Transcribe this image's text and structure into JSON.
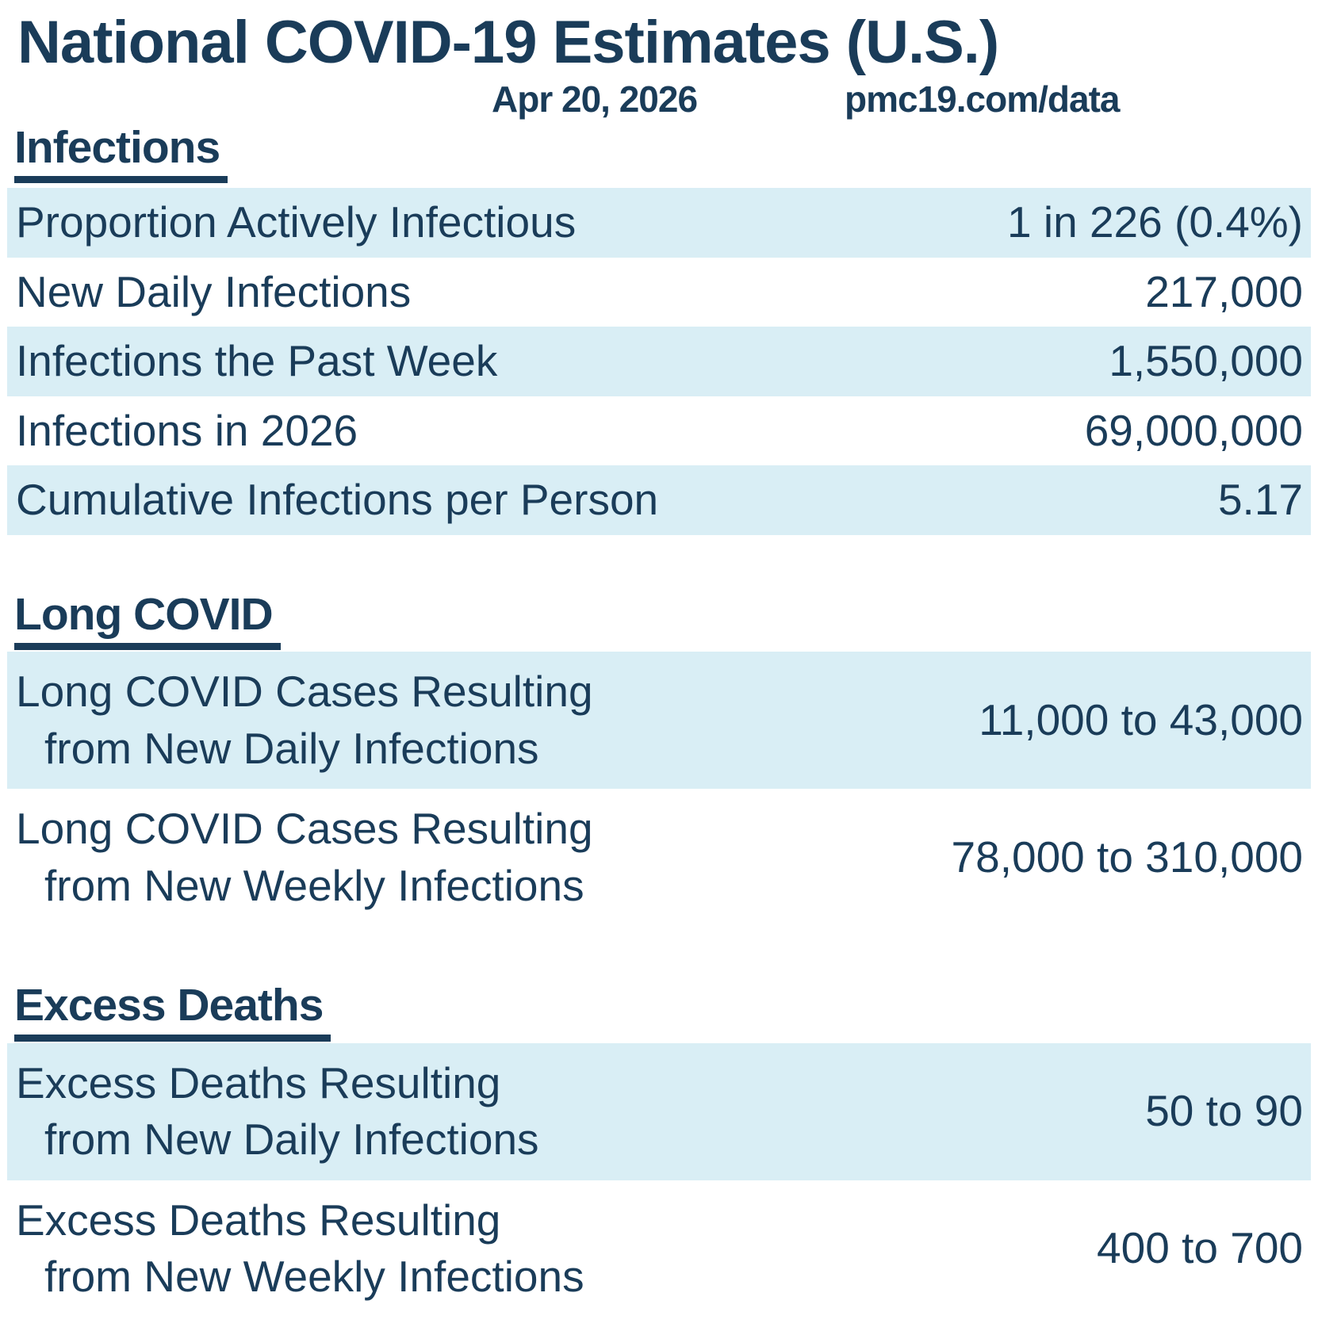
{
  "chart_data": {
    "type": "table",
    "title": "National COVID-19 Estimates (U.S.)",
    "date": "Apr 20, 2026",
    "source": "pmc19.com/data",
    "sections": [
      {
        "id": "infections",
        "heading": "Infections",
        "rows": [
          {
            "label_lines": [
              "Proportion Actively Infectious"
            ],
            "value": "1 in 226 (0.4%)"
          },
          {
            "label_lines": [
              "New Daily Infections"
            ],
            "value": "217,000"
          },
          {
            "label_lines": [
              "Infections the Past Week"
            ],
            "value": "1,550,000"
          },
          {
            "label_lines": [
              "Infections in 2026"
            ],
            "value": "69,000,000"
          },
          {
            "label_lines": [
              "Cumulative Infections per Person"
            ],
            "value": "5.17"
          }
        ]
      },
      {
        "id": "long-covid",
        "heading": "Long COVID",
        "rows": [
          {
            "label_lines": [
              "Long COVID Cases Resulting",
              "from New Daily Infections"
            ],
            "value": "11,000 to 43,000"
          },
          {
            "label_lines": [
              "Long COVID Cases Resulting",
              "from New Weekly Infections"
            ],
            "value": "78,000 to 310,000"
          }
        ]
      },
      {
        "id": "excess-deaths",
        "heading": "Excess Deaths",
        "rows": [
          {
            "label_lines": [
              "Excess Deaths Resulting",
              "from New Daily Infections"
            ],
            "value": "50 to 90"
          },
          {
            "label_lines": [
              "Excess Deaths Resulting",
              "from New Weekly Infections"
            ],
            "value": "400 to 700"
          }
        ]
      }
    ]
  },
  "colors": {
    "text_navy": "#1a3c59",
    "row_highlight": "#d9eef5",
    "background": "#ffffff"
  }
}
